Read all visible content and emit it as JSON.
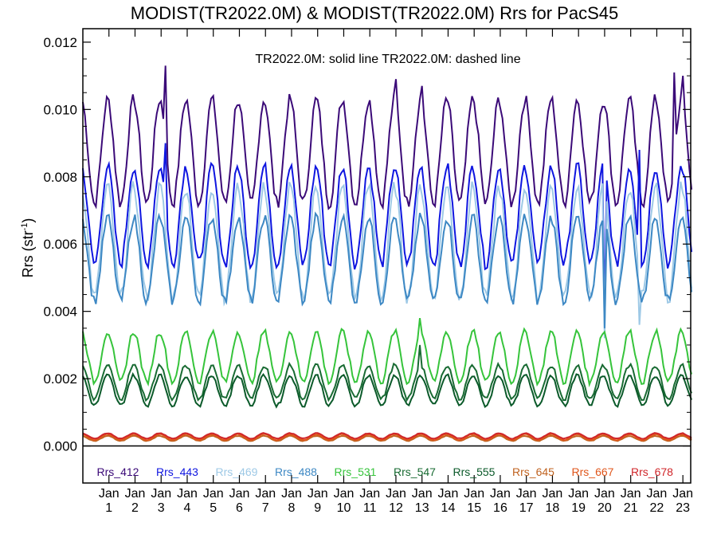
{
  "chart_data": {
    "type": "line",
    "title": "MODIST(TR2022.0M) & MODIST(TR2022.0M)  Rrs for PacS45",
    "ylabel": "Rrs (str",
    "ylabel_sup": "-1",
    "ylabel_end": ")",
    "annotation": "TR2022.0M: solid line   TR2022.0M: dashed line",
    "ylim": [
      -0.0011,
      0.0124
    ],
    "yticks": [
      "0.000",
      "0.002",
      "0.004",
      "0.006",
      "0.008",
      "0.010",
      "0.012"
    ],
    "ytick_values": [
      0,
      0.002,
      0.004,
      0.006,
      0.008,
      0.01,
      0.012
    ],
    "xlim": [
      0,
      23.3
    ],
    "xtick_month": "Jan",
    "xtick_years": [
      "1",
      "2",
      "3",
      "4",
      "5",
      "6",
      "7",
      "8",
      "9",
      "10",
      "11",
      "12",
      "13",
      "14",
      "15",
      "16",
      "17",
      "18",
      "19",
      "20",
      "21",
      "22",
      "23"
    ],
    "legend_position": "bottom inside plot",
    "series": [
      {
        "name": "Rrs_412",
        "color": "#3b0a78",
        "min": 0.0072,
        "max": 0.0103,
        "spikes": [
          [
            3.2,
            0.0113
          ],
          [
            12.0,
            0.0109
          ],
          [
            13.0,
            0.0107
          ],
          [
            22.7,
            0.0111
          ],
          [
            23.0,
            0.011
          ]
        ]
      },
      {
        "name": "Rrs_443",
        "color": "#0f16e0",
        "min": 0.0054,
        "max": 0.0083,
        "spikes": [
          [
            3.2,
            0.009
          ],
          [
            21.3,
            0.0088
          ],
          [
            20.0,
            0.004
          ]
        ]
      },
      {
        "name": "Rrs_469",
        "color": "#9ec9e6",
        "min": 0.0044,
        "max": 0.0077,
        "spikes": [
          [
            20.0,
            0.0032
          ],
          [
            21.3,
            0.0036
          ]
        ]
      },
      {
        "name": "Rrs_488",
        "color": "#3d88c4",
        "min": 0.0043,
        "max": 0.0068,
        "spikes": [
          [
            20.0,
            0.0035
          ]
        ]
      },
      {
        "name": "Rrs_531",
        "color": "#36c43b",
        "min": 0.0019,
        "max": 0.0034,
        "spikes": [
          [
            12.9,
            0.0038
          ]
        ]
      },
      {
        "name": "Rrs_547",
        "color": "#196b33",
        "min": 0.0014,
        "max": 0.0024,
        "spikes": [
          [
            12.9,
            0.003
          ]
        ]
      },
      {
        "name": "Rrs_555",
        "color": "#0b5a2a",
        "min": 0.0012,
        "max": 0.0021,
        "spikes": []
      },
      {
        "name": "Rrs_645",
        "color": "#c0621f",
        "min": 0.00015,
        "max": 0.0003,
        "spikes": []
      },
      {
        "name": "Rrs_667",
        "color": "#e0561b",
        "min": 0.00018,
        "max": 0.00035,
        "spikes": []
      },
      {
        "name": "Rrs_678",
        "color": "#d0262a",
        "min": 0.00022,
        "max": 0.00038,
        "spikes": []
      }
    ]
  }
}
